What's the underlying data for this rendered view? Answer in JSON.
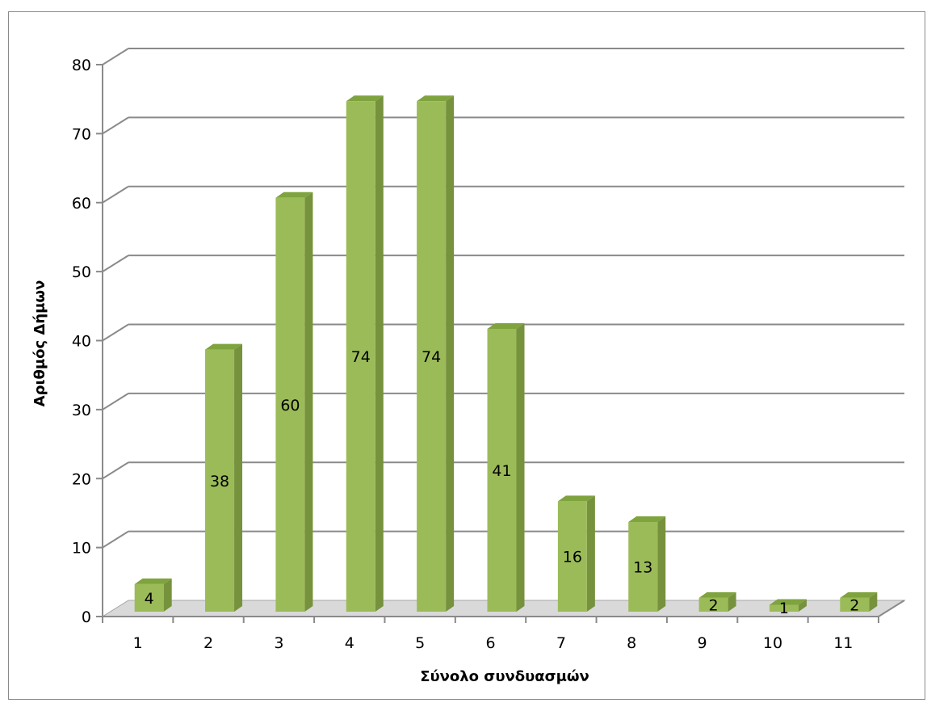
{
  "chart_data": {
    "type": "bar",
    "style": "3d-column",
    "categories": [
      "1",
      "2",
      "3",
      "4",
      "5",
      "6",
      "7",
      "8",
      "9",
      "10",
      "11"
    ],
    "values": [
      4,
      38,
      60,
      74,
      74,
      41,
      16,
      13,
      2,
      1,
      2
    ],
    "data_labels": [
      "4",
      "38",
      "60",
      "74",
      "74",
      "41",
      "16",
      "13",
      "2",
      "1",
      "2"
    ],
    "xlabel": "Σύνολο συνδυασμών",
    "ylabel": "Αριθμός Δήμων",
    "ylim": [
      0,
      80
    ],
    "yticks": [
      "0",
      "10",
      "20",
      "30",
      "40",
      "50",
      "60",
      "70",
      "80"
    ],
    "grid": true,
    "legend": "none",
    "colors": {
      "bar_front": "#9BBB59",
      "bar_side": "#76923C",
      "bar_top": "#7FA33E",
      "gridline": "#8a8a8a",
      "floor": "#d9d9d9"
    }
  }
}
